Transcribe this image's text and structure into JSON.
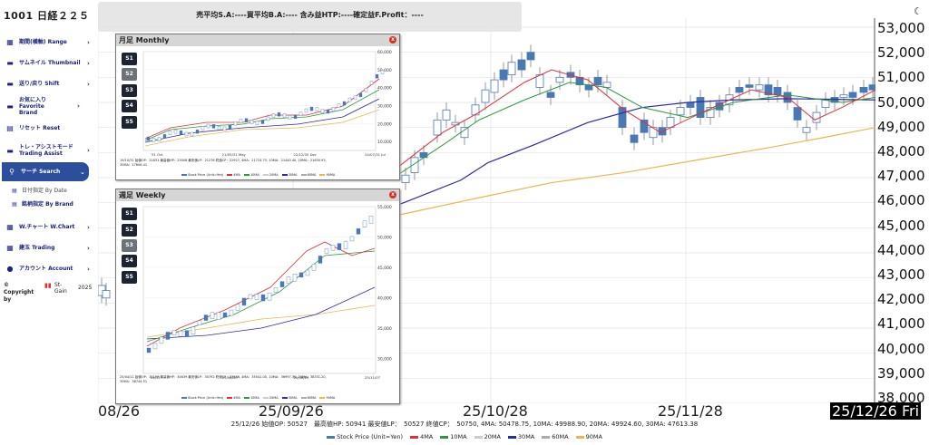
{
  "header": {
    "ticker": "1001 日経２２５",
    "theme_icon": "moon-icon",
    "status": "売平均S.A:----買平均B.A:---- 含み益HTP:----確定益F.Profit：----"
  },
  "sidebar": {
    "items": [
      {
        "icon": "calendar-icon",
        "glyph": "▦",
        "label": "期間(横軸) Range",
        "arrow": "›",
        "active": false
      },
      {
        "icon": "thumbnail-icon",
        "glyph": "▬",
        "label": "サムネイル Thumbnail",
        "arrow": "›",
        "active": false
      },
      {
        "icon": "shift-icon",
        "glyph": "▬",
        "label": "送り/戻り Shift",
        "arrow": "›",
        "active": false
      },
      {
        "icon": "favorite-icon",
        "glyph": "▬",
        "label": "お気に入り Favorite　Brand",
        "arrow": "›",
        "active": false
      },
      {
        "icon": "reset-icon",
        "glyph": "▤",
        "label": "リセット Reset",
        "arrow": "",
        "active": false
      },
      {
        "icon": "trade-assist-icon",
        "glyph": "▬",
        "label": "トレ・アシストモード Trading Assist",
        "arrow": "›",
        "active": false
      },
      {
        "icon": "search-icon",
        "glyph": "🔍",
        "label": "サーチ Search",
        "arrow": "⌄",
        "active": true
      }
    ],
    "sub_items": [
      {
        "label": "日付指定 By Date"
      },
      {
        "label": "銘柄指定 By Brand"
      }
    ],
    "items2": [
      {
        "icon": "wchart-icon",
        "glyph": "▦",
        "label": "W.チャート W.Chart",
        "arrow": "›"
      },
      {
        "icon": "trading-icon",
        "glyph": "▦",
        "label": "建玉 Trading",
        "arrow": "›"
      },
      {
        "icon": "account-icon",
        "glyph": "●",
        "label": "アカウント Account",
        "arrow": "›"
      }
    ],
    "copyright": "© Copyright by",
    "brand": "St-Gain",
    "year": "2025"
  },
  "main_chart": {
    "y_labels": [
      "53,000",
      "52,000",
      "51,000",
      "50,000",
      "49,000",
      "48,000",
      "47,000",
      "46,000",
      "45,000",
      "44,000",
      "43,000",
      "42,000",
      "41,000",
      "40,000",
      "39,000",
      "38,000"
    ],
    "x_labels": [
      "08/26",
      "25/09/26",
      "25/10/28",
      "25/11/28"
    ],
    "current_date": "25/12/26 Fri",
    "info": "25/12/26 始値OP: 50527　最高値HP: 50941 最安値LP：　50527 終値CP：　50750, 4MA: 50478.75, 10MA: 49988.90, 20MA: 49924.60, 30MA: 47613.38",
    "legend": [
      {
        "label": "Stock Price (Unit=Yen)",
        "color": "#4a78b5"
      },
      {
        "label": "4MA",
        "color": "#e0303a"
      },
      {
        "label": "10MA",
        "color": "#2a9a3a"
      },
      {
        "label": "20MA",
        "color": "#cccccc"
      },
      {
        "label": "30MA",
        "color": "#2b2ba6"
      },
      {
        "label": "60MA",
        "color": "#aaaaaa"
      },
      {
        "label": "90MA",
        "color": "#e8b84a"
      }
    ]
  },
  "monthly": {
    "title": "月足 Monthly",
    "close_icon": "x",
    "buttons": [
      "S1",
      "S2",
      "S3",
      "S4",
      "S5"
    ],
    "selected": "S2",
    "y_ticks": [
      "60,000",
      "50,000",
      "40,000",
      "30,000",
      "20,000",
      "10,000"
    ],
    "x_ticks": [
      "'31 Oct",
      "21/05/31 May",
      "22/12/30 Dec",
      "24/07/31 Jul"
    ],
    "info": "19/10/31 始値OP：21831 最高値HP：23008 最安値LP：21276 終値CP：22927, 4MA：21724.75, 10MA：21440.40, 20MA：21630.93, 30MA：17606.41",
    "legend": [
      "Stock Price (Unit=Yen)",
      "4MA",
      "10MA",
      "20MA",
      "30MA",
      "60MA",
      "90MA"
    ]
  },
  "weekly": {
    "title": "週足 Weekly",
    "close_icon": "x",
    "buttons": [
      "S1",
      "S2",
      "S3",
      "S4",
      "S5"
    ],
    "selected": "S3",
    "y_ticks": [
      "55,000",
      "50,000",
      "45,000",
      "40,000",
      "35,000",
      "30,000"
    ],
    "x_ticks": [
      "04/11",
      "25/06/20",
      "25/08/29",
      "25/11/07"
    ],
    "info": "25/04/11 始値OP：33159 最高値HP：34639 最安値LP：30792 終値CP：33586, 4MA：35541.00, 10MA：36997.30, 20MA：38331.20, 30MA：36744.51",
    "legend": [
      "Stock Price (Unit=Yen)",
      "4MA",
      "10MA",
      "20MA",
      "30MA",
      "60MA",
      "90MA"
    ]
  }
}
